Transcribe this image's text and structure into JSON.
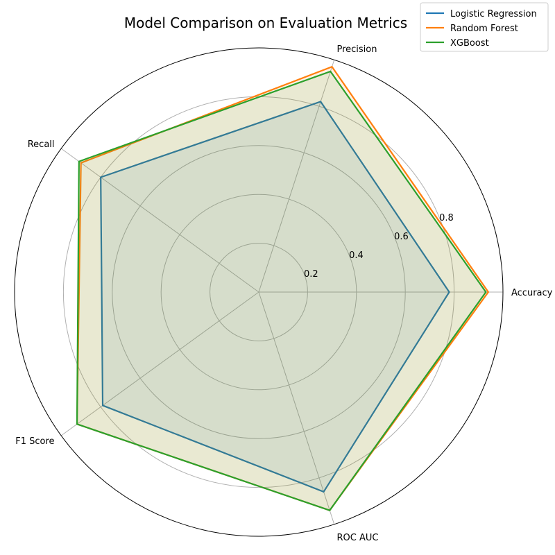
{
  "chart_data": {
    "type": "radar",
    "title": "Model Comparison on Evaluation Metrics",
    "categories": [
      "Accuracy",
      "Precision",
      "Recall",
      "F1 Score",
      "ROC AUC"
    ],
    "rlim": [
      0,
      1.0
    ],
    "rticks": [
      0.2,
      0.4,
      0.6,
      0.8
    ],
    "rtick_labels": [
      "0.2",
      "0.4",
      "0.6",
      "0.8"
    ],
    "grid": true,
    "legend_position": "top-right",
    "series": [
      {
        "name": "Logistic Regression",
        "color": "#1f77b4",
        "values": [
          0.78,
          0.82,
          0.8,
          0.79,
          0.86
        ]
      },
      {
        "name": "Random Forest",
        "color": "#ff7f0e",
        "values": [
          0.94,
          0.97,
          0.9,
          0.92,
          0.94
        ]
      },
      {
        "name": "XGBoost",
        "color": "#2ca02c",
        "values": [
          0.93,
          0.95,
          0.91,
          0.92,
          0.94
        ]
      }
    ]
  }
}
